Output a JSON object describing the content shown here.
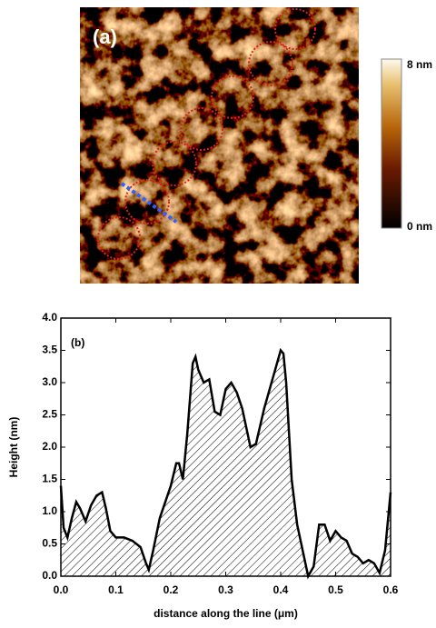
{
  "chart_data": [
    {
      "type": "image",
      "label": "(a)",
      "colorbar_lim": [
        0,
        8
      ],
      "colorbar_ticks": [
        {
          "value": 0,
          "label": "0 nm"
        },
        {
          "value": 8,
          "label": "8 nm"
        }
      ]
    },
    {
      "type": "area",
      "label": "(b)",
      "xlabel": "distance along the line (μm)",
      "ylabel": "Height (nm)",
      "color": "#000000",
      "x": [
        0,
        0.005,
        0.012,
        0.02,
        0.028,
        0.035,
        0.045,
        0.055,
        0.065,
        0.075,
        0.082,
        0.09,
        0.1,
        0.115,
        0.13,
        0.145,
        0.155,
        0.16,
        0.168,
        0.18,
        0.2,
        0.21,
        0.215,
        0.222,
        0.23,
        0.24,
        0.245,
        0.25,
        0.26,
        0.27,
        0.28,
        0.29,
        0.3,
        0.31,
        0.32,
        0.33,
        0.34,
        0.345,
        0.355,
        0.37,
        0.39,
        0.4,
        0.405,
        0.41,
        0.42,
        0.43,
        0.44,
        0.45,
        0.46,
        0.47,
        0.48,
        0.49,
        0.5,
        0.51,
        0.52,
        0.53,
        0.54,
        0.55,
        0.56,
        0.57,
        0.58,
        0.59,
        0.6
      ],
      "values": [
        1.4,
        0.75,
        0.6,
        0.9,
        1.15,
        1.05,
        0.85,
        1.1,
        1.25,
        1.3,
        1.05,
        0.7,
        0.6,
        0.6,
        0.55,
        0.45,
        0.2,
        0.1,
        0.4,
        0.9,
        1.4,
        1.75,
        1.75,
        1.5,
        2.2,
        3.3,
        3.4,
        3.2,
        3.0,
        3.05,
        2.55,
        2.5,
        2.9,
        3.0,
        2.85,
        2.6,
        2.2,
        2.0,
        2.05,
        2.6,
        3.2,
        3.5,
        3.45,
        3.0,
        1.5,
        0.8,
        0.4,
        0.0,
        0.15,
        0.8,
        0.8,
        0.55,
        0.7,
        0.6,
        0.55,
        0.35,
        0.3,
        0.2,
        0.25,
        0.2,
        0.05,
        0.4,
        1.3
      ],
      "xlim": [
        0,
        0.6
      ],
      "ylim": [
        0,
        4
      ],
      "xticks": [
        {
          "value": 0,
          "label": "0.0"
        },
        0.1,
        0.2,
        0.3,
        0.4,
        0.5,
        0.6
      ],
      "yticks": [
        {
          "value": 0,
          "label": "0.0"
        },
        0.5,
        {
          "value": 1,
          "label": "1.0"
        },
        1.5,
        {
          "value": 2,
          "label": "2.0"
        },
        2.5,
        {
          "value": 3,
          "label": "3.0"
        },
        3.5,
        {
          "value": 4,
          "label": "4.0"
        }
      ]
    }
  ]
}
